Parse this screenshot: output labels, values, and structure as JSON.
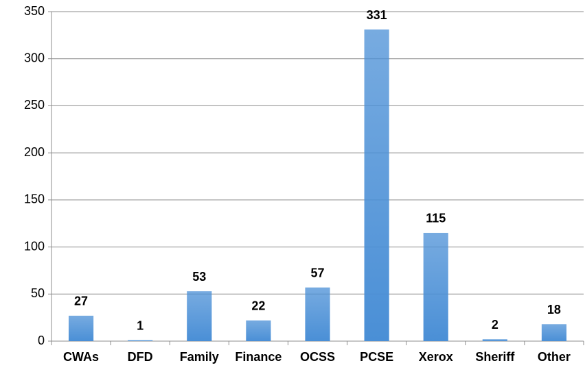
{
  "chart_data": {
    "type": "bar",
    "categories": [
      "CWAs",
      "DFD",
      "Family",
      "Finance",
      "OCSS",
      "PCSE",
      "Xerox",
      "Sheriff",
      "Other"
    ],
    "values": [
      27,
      1,
      53,
      22,
      57,
      331,
      115,
      2,
      18
    ],
    "color": "#4a8fd6",
    "ylim": [
      0,
      350
    ],
    "yticks": [
      0,
      50,
      100,
      150,
      200,
      250,
      300,
      350
    ],
    "grid": true
  }
}
